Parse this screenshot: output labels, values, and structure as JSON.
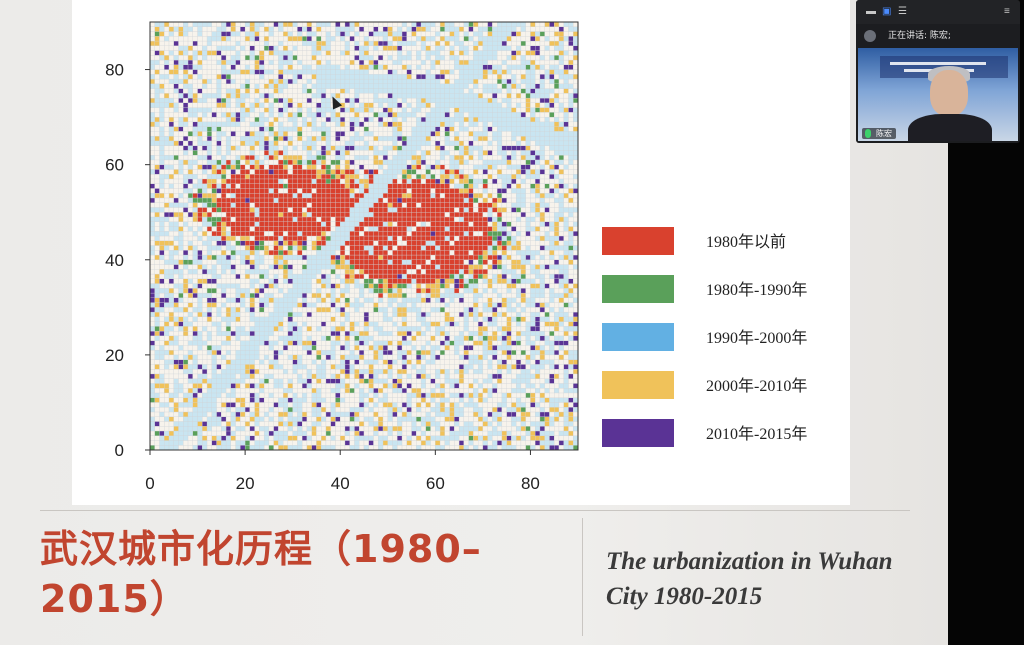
{
  "slide": {
    "title_cn": "武汉城市化历程（1980–2015）",
    "title_en": "The urbanization in Wuhan City 1980-2015"
  },
  "meeting": {
    "speaking_label": "正在讲话: 陈宏;",
    "participant_name": "陈宏"
  },
  "chart_data": {
    "type": "heatmap",
    "xlim": [
      0,
      90
    ],
    "ylim": [
      0,
      90
    ],
    "x_ticks": [
      "0",
      "20",
      "40",
      "60",
      "80"
    ],
    "y_ticks": [
      "0",
      "20",
      "40",
      "60",
      "80"
    ],
    "legend_position": "right",
    "legend": [
      {
        "label": "1980年以前",
        "color": "#d9412e"
      },
      {
        "label": "1980年-1990年",
        "color": "#5aa05a"
      },
      {
        "label": "1990年-2000年",
        "color": "#62b0e3"
      },
      {
        "label": "2000年-2010年",
        "color": "#f0c25a"
      },
      {
        "label": "2010年-2015年",
        "color": "#5a3395"
      }
    ],
    "background_colors": {
      "grid": "#cfd3d6",
      "water": "#c9e5f1",
      "empty": "#f7f3ec"
    }
  }
}
